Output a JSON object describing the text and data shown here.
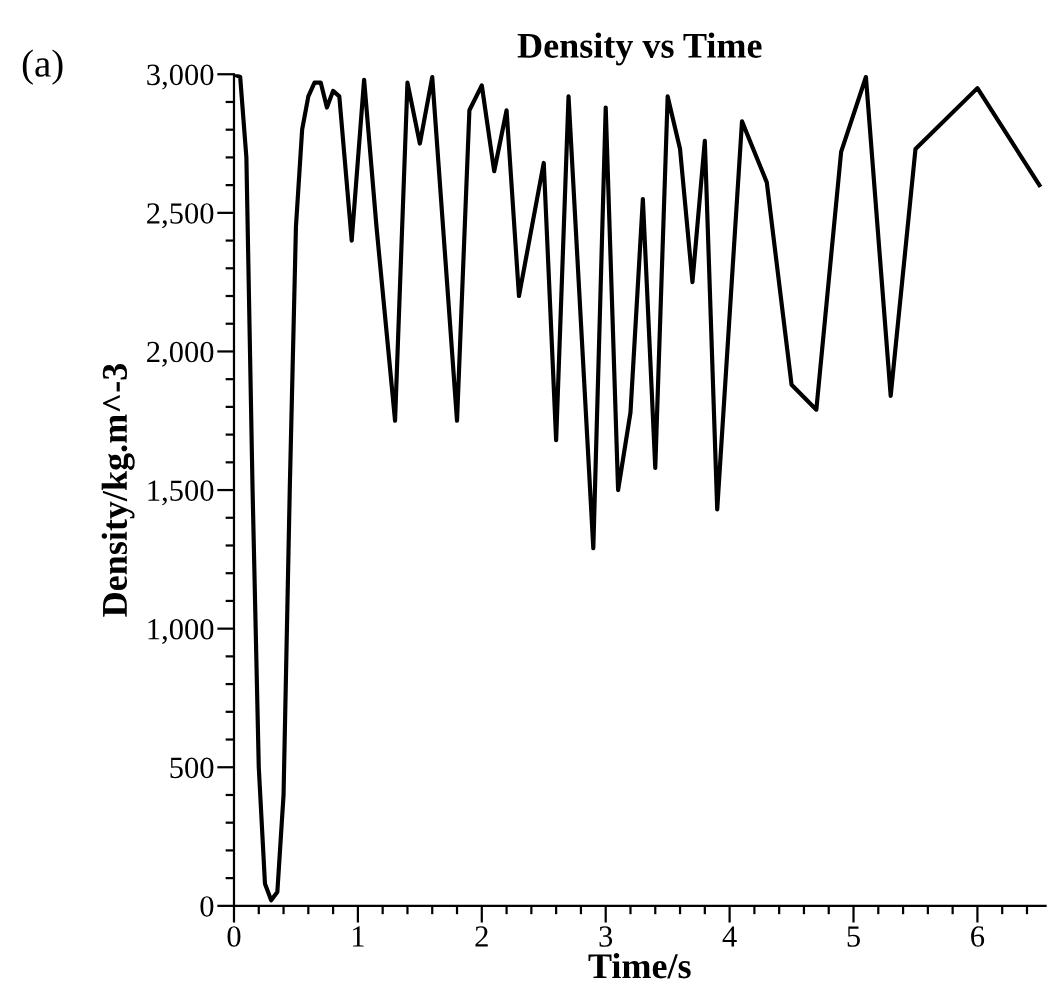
{
  "chart_data": {
    "type": "line",
    "title": "Density vs Time",
    "xlabel": "Time/s",
    "ylabel": "Density/kg.m^-3",
    "annotations": [
      "(a)"
    ],
    "series": [
      {
        "color": "#000000",
        "x": [
          0,
          0.05,
          0.1,
          0.15,
          0.2,
          0.25,
          0.3,
          0.35,
          0.4,
          0.45,
          0.5,
          0.55,
          0.6,
          0.65,
          0.7,
          0.75,
          0.8,
          0.85,
          0.95,
          1.05,
          1.15,
          1.3,
          1.4,
          1.5,
          1.6,
          1.8,
          1.9,
          2.0,
          2.1,
          2.2,
          2.3,
          2.5,
          2.6,
          2.7,
          2.9,
          3.0,
          3.1,
          3.2,
          3.3,
          3.4,
          3.5,
          3.6,
          3.7,
          3.8,
          3.9,
          4.1,
          4.3,
          4.5,
          4.7,
          4.9,
          5.1,
          5.3,
          5.5,
          6.0,
          6.5
        ],
        "values": [
          3000,
          2990,
          2700,
          1500,
          500,
          80,
          20,
          50,
          400,
          1500,
          2450,
          2800,
          2920,
          2970,
          2970,
          2880,
          2940,
          2920,
          2400,
          2980,
          2450,
          1750,
          2970,
          2750,
          2990,
          1750,
          2870,
          2960,
          2650,
          2870,
          2200,
          2680,
          1680,
          2920,
          1290,
          2880,
          1500,
          1780,
          2550,
          1580,
          2920,
          2730,
          2250,
          2760,
          1430,
          2830,
          2610,
          1880,
          1790,
          2720,
          2990,
          1840,
          2730,
          2950,
          2600
        ]
      }
    ],
    "xlim": [
      0,
      6.55
    ],
    "ylim": [
      0,
      3000
    ],
    "xticks": [
      0,
      {
        "value": 0.2,
        "label": null
      },
      {
        "value": 0.4,
        "label": null
      },
      {
        "value": 0.6,
        "label": null
      },
      {
        "value": 0.8,
        "label": null
      },
      1,
      {
        "value": 1.2,
        "label": null
      },
      {
        "value": 1.4,
        "label": null
      },
      {
        "value": 1.6,
        "label": null
      },
      {
        "value": 1.8,
        "label": null
      },
      2,
      {
        "value": 2.2,
        "label": null
      },
      {
        "value": 2.4,
        "label": null
      },
      {
        "value": 2.6,
        "label": null
      },
      {
        "value": 2.8,
        "label": null
      },
      3,
      {
        "value": 3.2,
        "label": null
      },
      {
        "value": 3.4,
        "label": null
      },
      {
        "value": 3.6,
        "label": null
      },
      {
        "value": 3.8,
        "label": null
      },
      4,
      {
        "value": 4.2,
        "label": null
      },
      {
        "value": 4.4,
        "label": null
      },
      {
        "value": 4.6,
        "label": null
      },
      {
        "value": 4.8,
        "label": null
      },
      5,
      {
        "value": 5.2,
        "label": null
      },
      {
        "value": 5.4,
        "label": null
      },
      {
        "value": 5.6,
        "label": null
      },
      {
        "value": 5.8,
        "label": null
      },
      6,
      {
        "value": 6.2,
        "label": null
      },
      {
        "value": 6.4,
        "label": null
      }
    ],
    "yticks": [
      {
        "value": 0,
        "label": "0"
      },
      {
        "value": 100,
        "label": null
      },
      {
        "value": 200,
        "label": null
      },
      {
        "value": 300,
        "label": null
      },
      {
        "value": 400,
        "label": null
      },
      {
        "value": 500,
        "label": "500"
      },
      {
        "value": 600,
        "label": null
      },
      {
        "value": 700,
        "label": null
      },
      {
        "value": 800,
        "label": null
      },
      {
        "value": 900,
        "label": null
      },
      {
        "value": 1000,
        "label": "1,000"
      },
      {
        "value": 1100,
        "label": null
      },
      {
        "value": 1200,
        "label": null
      },
      {
        "value": 1300,
        "label": null
      },
      {
        "value": 1400,
        "label": null
      },
      {
        "value": 1500,
        "label": "1,500"
      },
      {
        "value": 1600,
        "label": null
      },
      {
        "value": 1700,
        "label": null
      },
      {
        "value": 1800,
        "label": null
      },
      {
        "value": 1900,
        "label": null
      },
      {
        "value": 2000,
        "label": "2,000"
      },
      {
        "value": 2100,
        "label": null
      },
      {
        "value": 2200,
        "label": null
      },
      {
        "value": 2300,
        "label": null
      },
      {
        "value": 2400,
        "label": null
      },
      {
        "value": 2500,
        "label": "2,500"
      },
      {
        "value": 2600,
        "label": null
      },
      {
        "value": 2700,
        "label": null
      },
      {
        "value": 2800,
        "label": null
      },
      {
        "value": 2900,
        "label": null
      },
      {
        "value": 3000,
        "label": "3,000"
      }
    ],
    "grid": false,
    "legend": false,
    "marker": "none",
    "line_style": "solid"
  }
}
